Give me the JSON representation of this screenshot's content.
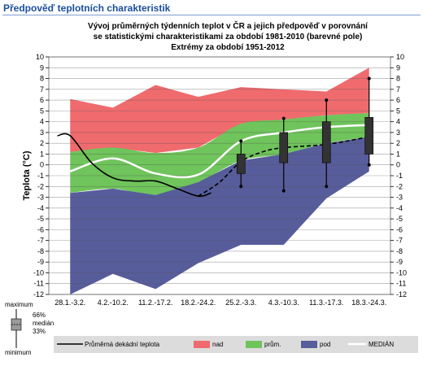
{
  "header": {
    "title": "Předpověď teplotních charakteristik"
  },
  "chart_data": {
    "type": "area",
    "title_lines": [
      "Vývoj průměrných týdenních teplot v ČR a jejich předpověď v porovnání",
      "se statistickými charakteristikami za období 1981-2010 (barevné pole)",
      "Extrémy za období 1951-2012"
    ],
    "ylabel": "Teplota (°C)",
    "ylim": [
      -12,
      10
    ],
    "yticks": [
      10,
      9,
      8,
      7,
      6,
      5,
      4,
      3,
      2,
      1,
      0,
      -1,
      -2,
      -3,
      -4,
      -5,
      -6,
      -7,
      -8,
      -9,
      -10,
      -11,
      -12
    ],
    "categories": [
      "28.1.-3.2.",
      "4.2.-10.2.",
      "11.2.-17.2.",
      "18.2.-24.2.",
      "25.2.-3.3.",
      "4.3.-10.3.",
      "11.3.-17.3.",
      "18.3.-24.3."
    ],
    "grid": true,
    "bands": {
      "x": [
        0,
        1,
        2,
        3,
        4,
        5,
        6,
        7
      ],
      "max": [
        6.1,
        5.3,
        7.4,
        6.3,
        7.2,
        7.0,
        6.8,
        9.0
      ],
      "upper": [
        1.2,
        1.6,
        1.1,
        1.6,
        3.8,
        4.2,
        4.6,
        4.8
      ],
      "median": [
        -0.6,
        0.6,
        -0.8,
        -0.9,
        2.2,
        3.0,
        3.5,
        3.7
      ],
      "lower": [
        -2.6,
        -2.2,
        -2.8,
        -1.6,
        0.4,
        1.0,
        2.0,
        2.6
      ],
      "min": [
        -12.0,
        -10.1,
        -11.5,
        -9.1,
        -7.4,
        -7.4,
        -3.1,
        -0.6
      ]
    },
    "observed": {
      "x": [
        -0.3,
        0,
        0.5,
        1.0,
        1.5,
        2.0,
        2.5,
        3.0,
        3.3
      ],
      "y": [
        2.7,
        2.7,
        0.2,
        -1.2,
        -1.5,
        -1.5,
        -2.2,
        -2.9,
        -2.6
      ]
    },
    "forecast": {
      "x": [
        3.0,
        3.5,
        4.0,
        4.5,
        5.0,
        6.0,
        7.0
      ],
      "y": [
        -2.9,
        -1.6,
        0.3,
        1.2,
        1.6,
        1.9,
        2.6
      ]
    },
    "boxes": [
      {
        "x": 4,
        "max": 2.2,
        "q66": 1.0,
        "median": 0.3,
        "q33": -0.8,
        "min": -2.0
      },
      {
        "x": 5,
        "max": 4.3,
        "q66": 3.0,
        "median": 1.8,
        "q33": 0.2,
        "min": -2.4
      },
      {
        "x": 6,
        "max": 6.0,
        "q66": 4.0,
        "median": 2.6,
        "q33": 0.2,
        "min": -2.0
      },
      {
        "x": 7,
        "max": 8.0,
        "q66": 4.4,
        "median": 2.6,
        "q33": 1.0,
        "min": 0.0
      }
    ],
    "colors": {
      "above": "#ef6b6e",
      "normal": "#6fc45b",
      "below": "#575c9b",
      "median": "#ffffff",
      "observed": "#000000",
      "box": "#333333"
    },
    "box_legend": {
      "max": "maximum",
      "q66": "66%",
      "median": "medián",
      "q33": "33%",
      "min": "minimum"
    },
    "legend": {
      "observed": "Průměrná dekádní teplota",
      "above": "nad",
      "normal": "prům.",
      "below": "pod",
      "median": "MEDIÁN"
    }
  }
}
